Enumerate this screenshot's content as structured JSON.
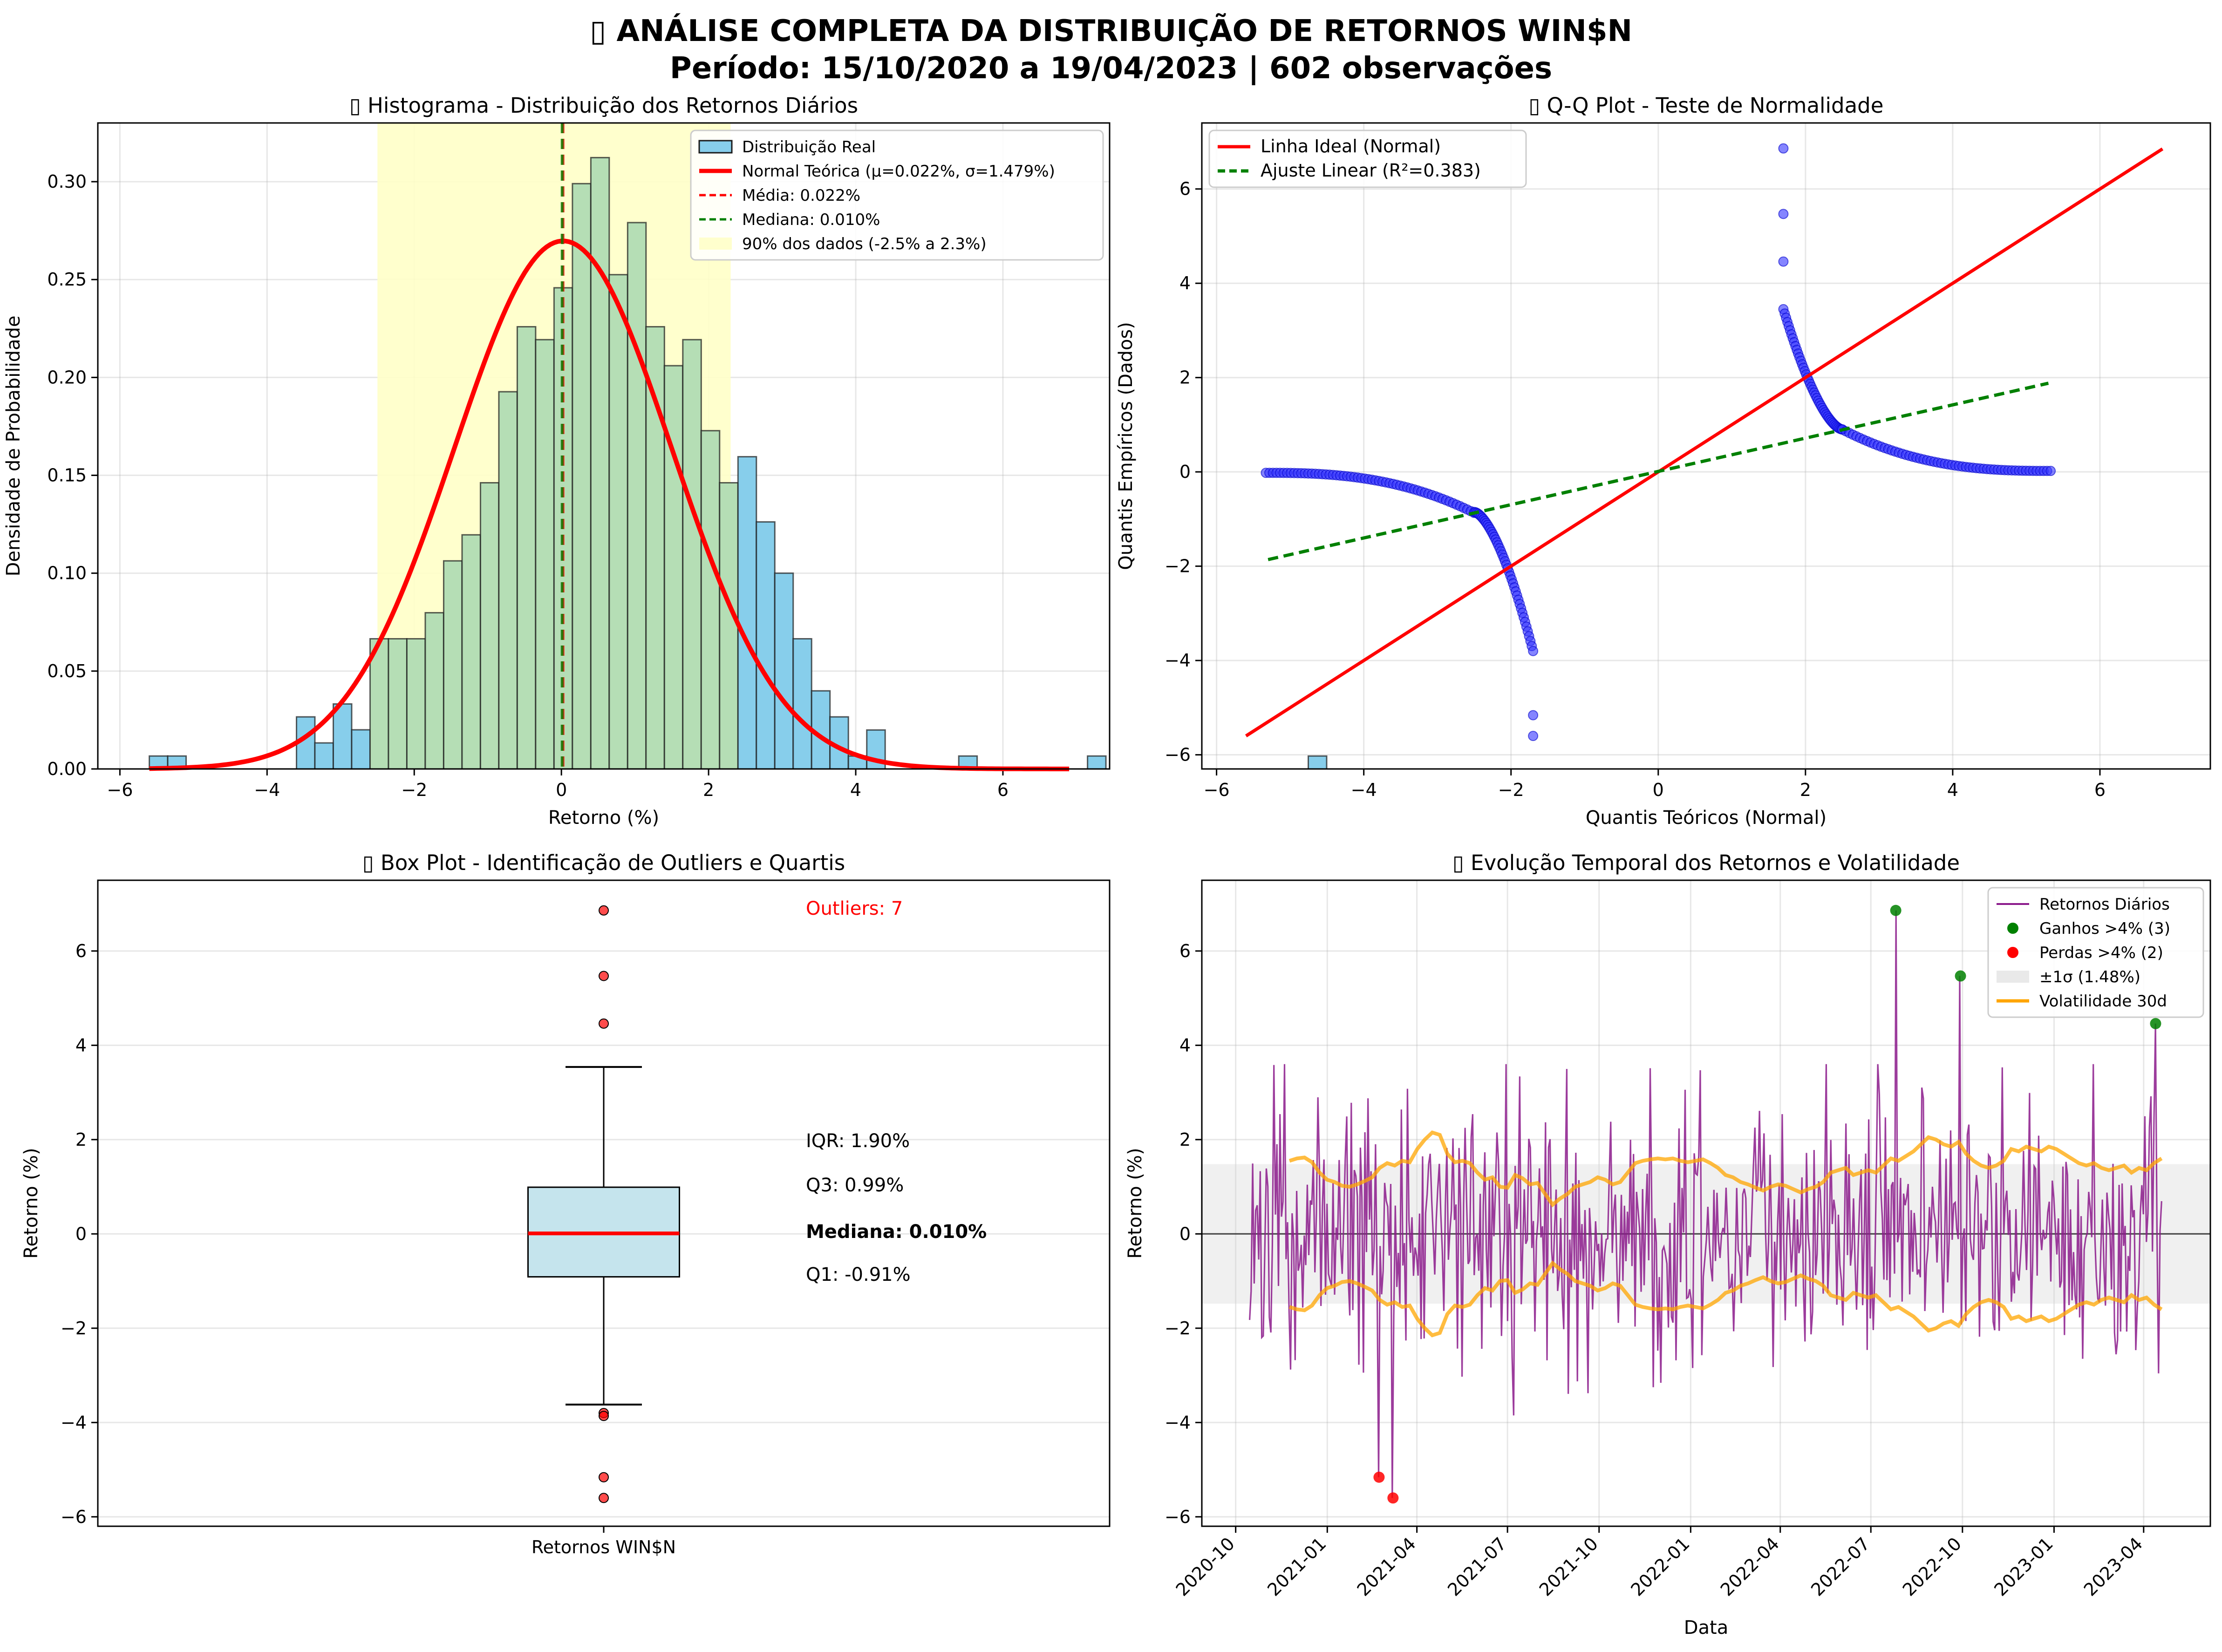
{
  "figure": {
    "title_line1": "▯ ANÁLISE COMPLETA DA DISTRIBUIÇÃO DE RETORNOS WIN$N",
    "title_line2": "Período: 15/10/2020 a 19/04/2023 | 602 observações"
  },
  "colors": {
    "hist_blue": "#87ceeb",
    "hist_green": "#b5deb5",
    "band_yellow": "#ffffc8",
    "red": "#ff0000",
    "green": "#008000",
    "qq_blue": "#3333ff",
    "purple": "#8b1a8b",
    "orange": "#ffa500",
    "box_fill": "#add8e6"
  },
  "chart_data": [
    {
      "type": "bar",
      "title": "▯ Histograma - Distribuição dos Retornos Diários",
      "xlabel": "Retorno (%)",
      "ylabel": "Densidade de Probabilidade",
      "xlim": [
        -6.3,
        7.45
      ],
      "ylim": [
        0,
        0.33
      ],
      "xticks": [
        -6,
        -4,
        -2,
        0,
        2,
        4,
        6
      ],
      "xtick_labels": [
        "−6",
        "−4",
        "−2",
        "0",
        "2",
        "4",
        "6"
      ],
      "yticks": [
        0,
        0.05,
        0.1,
        0.15,
        0.2,
        0.25,
        0.3
      ],
      "ytick_labels": [
        "0.00",
        "0.05",
        "0.10",
        "0.15",
        "0.20",
        "0.25",
        "0.30"
      ],
      "grid": true,
      "legend_position": "top-right",
      "bin_start": -5.6,
      "bin_width": 0.25,
      "highlight_range": [
        -2.5,
        2.3
      ],
      "density": [
        0.0066,
        0.0066,
        0,
        0,
        0,
        0,
        0,
        0,
        0.0266,
        0.0133,
        0.0332,
        0.02,
        0.0665,
        0.0665,
        0.0665,
        0.0798,
        0.1063,
        0.1196,
        0.1462,
        0.1927,
        0.2259,
        0.2193,
        0.2458,
        0.299,
        0.3123,
        0.2525,
        0.2791,
        0.2259,
        0.206,
        0.2193,
        0.1728,
        0.1462,
        0.1595,
        0.1262,
        0.1,
        0.0665,
        0.0399,
        0.0266,
        0.0066,
        0.0199,
        0,
        0,
        0,
        0,
        0.0066,
        0,
        0,
        0,
        0,
        0,
        0,
        0.0066,
        0,
        0,
        0,
        0,
        0,
        0,
        0,
        0,
        0,
        0,
        0,
        0.0066
      ],
      "normal_mu": 0.022,
      "normal_sigma": 1.479,
      "mean": 0.022,
      "median": 0.01,
      "series": [
        {
          "name": "Distribuição Real"
        },
        {
          "name": "Normal Teórica (μ=0.022%, σ=1.479%)"
        },
        {
          "name": "Média: 0.022%"
        },
        {
          "name": "Mediana: 0.010%"
        },
        {
          "name": "90% dos dados (-2.5% a 2.3%)"
        }
      ]
    },
    {
      "type": "scatter",
      "title": "▯ Q-Q Plot - Teste de Normalidade",
      "xlabel": "Quantis Teóricos (Normal)",
      "ylabel": "Quantis Empíricos (Dados)",
      "xlim": [
        -6.2,
        7.5
      ],
      "ylim": [
        -6.3,
        7.4
      ],
      "xticks": [
        -6,
        -4,
        -2,
        0,
        2,
        4,
        6
      ],
      "xtick_labels": [
        "−6",
        "−4",
        "−2",
        "0",
        "2",
        "4",
        "6"
      ],
      "yticks": [
        -6,
        -4,
        -2,
        0,
        2,
        4,
        6
      ],
      "ytick_labels": [
        "−6",
        "−4",
        "−2",
        "0",
        "2",
        "4",
        "6"
      ],
      "grid": true,
      "legend_position": "top-left",
      "ideal_line": {
        "x": [
          -5.6,
          6.85
        ],
        "y": [
          -5.6,
          6.85
        ]
      },
      "fit_line": {
        "x": [
          -5.3,
          5.3
        ],
        "y": [
          -1.86,
          1.88
        ]
      },
      "series": [
        {
          "name": "Linha Ideal (Normal)"
        },
        {
          "name": "Ajuste Linear (R²=0.383)"
        }
      ]
    },
    {
      "type": "box",
      "title": "▯ Box Plot - Identificação de Outliers e Quartis",
      "ylabel": "Retorno (%)",
      "xtick_label": "Retornos WIN$N",
      "ylim": [
        -6.2,
        7.5
      ],
      "yticks": [
        -6,
        -4,
        -2,
        0,
        2,
        4,
        6
      ],
      "ytick_labels": [
        "−6",
        "−4",
        "−2",
        "0",
        "2",
        "4",
        "6"
      ],
      "grid": true,
      "q1": -0.91,
      "median": 0.01,
      "q3": 0.99,
      "whisker_low": -3.62,
      "whisker_high": 3.54,
      "outliers": [
        6.86,
        5.47,
        4.46,
        -3.8,
        -3.86,
        -5.16,
        -5.6
      ],
      "outliers_label": "Outliers: 7",
      "stats": {
        "iqr": "IQR: 1.90%",
        "q3": "Q3: 0.99%",
        "median": "Mediana: 0.010%",
        "q1": "Q1: -0.91%"
      }
    },
    {
      "type": "line",
      "title": "▯ Evolução Temporal dos Retornos e Volatilidade",
      "xlabel": "Data",
      "ylabel": "Retorno (%)",
      "xlim": [
        "2020-08-28",
        "2023-06-07"
      ],
      "ylim": [
        -6.2,
        7.5
      ],
      "x_start": "2020-10-15",
      "x_end": "2023-04-19",
      "xticks": [
        "2020-10",
        "2021-01",
        "2021-04",
        "2021-07",
        "2021-10",
        "2022-01",
        "2022-04",
        "2022-07",
        "2022-10",
        "2023-01",
        "2023-04"
      ],
      "yticks": [
        -6,
        -4,
        -2,
        0,
        2,
        4,
        6
      ],
      "ytick_labels": [
        "−6",
        "−4",
        "−2",
        "0",
        "2",
        "4",
        "6"
      ],
      "grid": true,
      "legend_position": "top-right",
      "sigma_band": 1.48,
      "volatility_30d": [
        1.55,
        1.6,
        1.62,
        1.52,
        1.3,
        1.15,
        1.1,
        1.02,
        1.0,
        1.05,
        1.12,
        1.2,
        1.4,
        1.5,
        1.45,
        1.55,
        1.52,
        1.8,
        2.0,
        2.15,
        2.1,
        1.7,
        1.52,
        1.55,
        1.5,
        1.3,
        1.15,
        1.2,
        1.0,
        0.98,
        1.25,
        1.18,
        1.05,
        1.08,
        0.85,
        0.62,
        0.75,
        0.85,
        1.0,
        1.05,
        1.1,
        1.2,
        1.15,
        1.05,
        1.1,
        1.3,
        1.5,
        1.55,
        1.58,
        1.6,
        1.58,
        1.6,
        1.55,
        1.52,
        1.55,
        1.58,
        1.5,
        1.4,
        1.25,
        1.2,
        1.1,
        1.05,
        0.98,
        0.92,
        1.0,
        1.05,
        1.02,
        0.95,
        0.88,
        0.95,
        1.0,
        1.1,
        1.3,
        1.35,
        1.4,
        1.25,
        1.3,
        1.35,
        1.3,
        1.45,
        1.6,
        1.55,
        1.65,
        1.75,
        1.9,
        2.05,
        2.0,
        1.9,
        1.85,
        1.95,
        1.7,
        1.55,
        1.45,
        1.4,
        1.45,
        1.55,
        1.8,
        1.75,
        1.85,
        1.8,
        1.75,
        1.85,
        1.8,
        1.7,
        1.6,
        1.5,
        1.45,
        1.5,
        1.4,
        1.35,
        1.4,
        1.45,
        1.3,
        1.4,
        1.35,
        1.5,
        1.6
      ],
      "big_gains": [
        {
          "x": "2022-07-26",
          "y": 6.86
        },
        {
          "x": "2022-09-29",
          "y": 5.47
        },
        {
          "x": "2023-04-13",
          "y": 4.46
        }
      ],
      "big_losses": [
        {
          "x": "2021-02-22",
          "y": -5.16
        },
        {
          "x": "2021-03-08",
          "y": -5.6
        }
      ],
      "series": [
        {
          "name": "Retornos Diários"
        },
        {
          "name": "Ganhos >4% (3)"
        },
        {
          "name": "Perdas >4% (2)"
        },
        {
          "name": "±1σ (1.48%)"
        },
        {
          "name": "Volatilidade 30d"
        }
      ]
    }
  ]
}
